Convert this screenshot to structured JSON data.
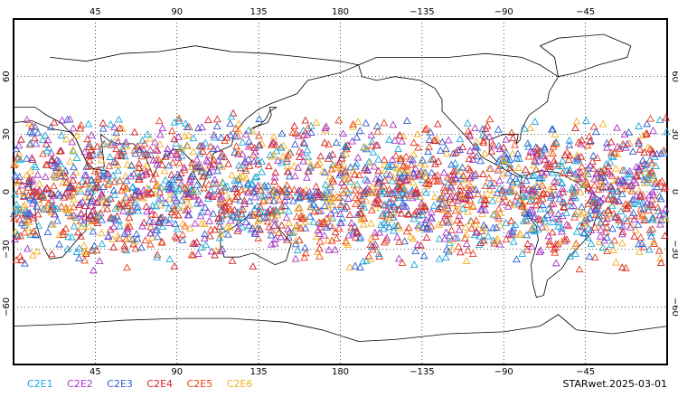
{
  "map": {
    "projection": "cylindrical",
    "lon_center_label": "180",
    "lon_ticks": [
      "45",
      "90",
      "135",
      "180",
      "−135",
      "−90",
      "−45"
    ],
    "lat_ticks": [
      "60",
      "30",
      "0",
      "−30",
      "−60"
    ],
    "grid": true,
    "lat_band": [
      -42,
      42
    ],
    "marker": "triangle"
  },
  "legend": [
    {
      "label": "C2E1",
      "color": "#1aa7d8"
    },
    {
      "label": "C2E2",
      "color": "#a633c7"
    },
    {
      "label": "C2E3",
      "color": "#2f5fd0"
    },
    {
      "label": "C2E4",
      "color": "#d42020"
    },
    {
      "label": "C2E5",
      "color": "#e8401c"
    },
    {
      "label": "C2E6",
      "color": "#f0b020"
    }
  ],
  "stamp": "STARwet.2025-03-01"
}
